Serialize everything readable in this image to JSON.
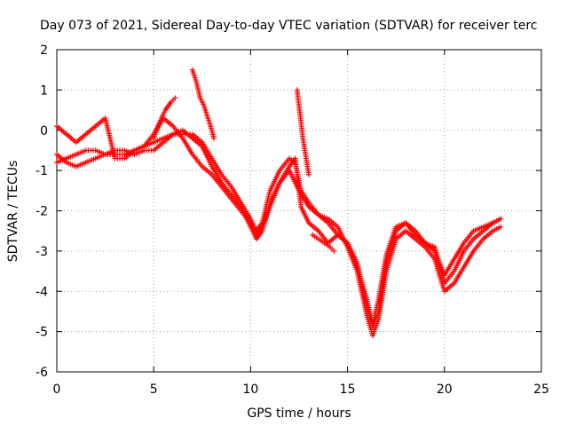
{
  "colors": {
    "series": "#ff0000",
    "grid": "#a0a0a0",
    "axis": "#000000"
  },
  "chart_data": {
    "type": "scatter",
    "marker": "plus",
    "title": "Day 073 of 2021, Sidereal Day-to-day VTEC variation (SDTVAR) for receiver terc",
    "xlabel": "GPS time / hours",
    "ylabel": "SDTVAR / TECUs",
    "xlim": [
      0,
      25
    ],
    "ylim": [
      -6,
      2
    ],
    "x_ticks": [
      "0",
      "5",
      "10",
      "15",
      "20",
      "25"
    ],
    "y_ticks": [
      "2",
      "1",
      "0",
      "-1",
      "-2",
      "-3",
      "-4",
      "-5",
      "-6"
    ],
    "grid": true,
    "legend": "none",
    "series": [
      {
        "x": [
          0.0,
          0.5,
          1.0,
          1.5,
          2.0,
          2.5,
          3.0,
          3.5,
          4.0,
          4.5,
          5.0,
          5.5,
          6.0,
          6.5,
          7.0,
          7.5,
          8.0,
          8.5,
          9.0,
          9.5,
          10.0,
          10.3,
          10.6,
          11.0,
          11.5,
          12.0,
          12.5,
          13.0,
          13.5,
          14.0,
          14.5,
          15.0,
          15.5,
          16.0,
          16.3,
          16.6,
          17.0,
          17.5,
          18.0,
          18.5,
          19.0,
          19.5,
          20.0,
          20.5,
          21.0,
          21.5,
          22.0,
          22.5,
          22.9
        ],
        "y": [
          -0.8,
          -0.7,
          -0.6,
          -0.5,
          -0.5,
          -0.6,
          -0.6,
          -0.6,
          -0.5,
          -0.4,
          -0.3,
          -0.2,
          -0.1,
          0.0,
          -0.2,
          -0.4,
          -0.9,
          -1.3,
          -1.6,
          -1.9,
          -2.4,
          -2.7,
          -2.5,
          -1.8,
          -1.3,
          -1.0,
          -1.5,
          -1.9,
          -2.1,
          -2.2,
          -2.4,
          -2.9,
          -3.5,
          -4.6,
          -5.1,
          -4.7,
          -3.5,
          -2.7,
          -2.5,
          -2.7,
          -2.9,
          -3.2,
          -4.0,
          -3.8,
          -3.4,
          -3.0,
          -2.7,
          -2.5,
          -2.4
        ]
      },
      {
        "x": [
          0.0,
          0.5,
          1.0,
          1.5,
          2.0,
          2.5,
          3.0,
          3.5,
          4.0,
          4.5,
          5.0,
          5.5,
          6.0,
          6.5,
          7.0,
          7.5,
          8.0,
          8.5,
          9.0,
          9.5,
          10.0,
          10.3,
          10.6,
          11.0,
          11.5,
          12.0,
          12.3,
          12.6,
          13.0,
          13.5,
          14.0,
          14.5,
          15.0,
          15.5,
          16.0,
          16.3,
          16.6,
          17.0,
          17.5,
          18.0,
          18.5,
          19.0,
          19.5,
          20.0,
          20.5,
          21.0,
          21.5,
          22.0,
          22.5,
          22.9
        ],
        "y": [
          -0.6,
          -0.8,
          -0.9,
          -0.8,
          -0.7,
          -0.6,
          -0.5,
          -0.5,
          -0.6,
          -0.5,
          -0.5,
          -0.3,
          -0.1,
          -0.1,
          -0.1,
          -0.3,
          -0.7,
          -1.1,
          -1.4,
          -1.8,
          -2.2,
          -2.5,
          -2.3,
          -1.5,
          -1.0,
          -0.7,
          -0.8,
          -1.5,
          -1.8,
          -2.1,
          -2.3,
          -2.6,
          -2.8,
          -3.3,
          -4.4,
          -4.9,
          -4.5,
          -3.3,
          -2.5,
          -2.3,
          -2.5,
          -2.8,
          -3.0,
          -3.6,
          -3.2,
          -2.8,
          -2.5,
          -2.4,
          -2.3,
          -2.2
        ]
      },
      {
        "x": [
          0.0,
          0.5,
          1.0,
          1.5,
          2.0,
          2.5,
          3.0,
          3.5,
          4.0,
          4.5,
          5.0,
          5.5,
          6.0,
          6.5,
          7.0,
          7.5,
          8.0,
          8.5,
          9.0,
          9.5,
          10.0,
          10.3,
          10.6,
          11.0,
          11.5,
          12.0,
          12.3,
          12.6,
          13.0,
          13.5,
          14.0,
          14.5,
          15.0,
          15.5,
          16.0,
          16.3,
          16.6,
          17.0,
          17.5,
          18.0,
          18.5,
          19.0,
          19.5,
          20.0,
          20.5,
          21.0,
          21.5,
          22.0,
          22.5,
          22.9
        ],
        "y": [
          0.1,
          -0.1,
          -0.3,
          -0.1,
          0.1,
          0.3,
          -0.7,
          -0.7,
          -0.5,
          -0.4,
          -0.1,
          0.3,
          0.1,
          -0.2,
          -0.6,
          -0.9,
          -1.1,
          -1.4,
          -1.7,
          -2.0,
          -2.3,
          -2.6,
          -2.4,
          -1.9,
          -1.3,
          -0.9,
          -0.7,
          -1.9,
          -2.3,
          -2.5,
          -2.8,
          -2.6,
          -2.8,
          -3.4,
          -4.2,
          -4.8,
          -4.2,
          -3.1,
          -2.4,
          -2.3,
          -2.6,
          -2.8,
          -2.9,
          -3.8,
          -3.5,
          -3.0,
          -2.7,
          -2.5,
          -2.3,
          -2.2
        ]
      },
      {
        "x": [
          5.0,
          5.3,
          5.6,
          5.9,
          6.1
        ],
        "y": [
          -0.2,
          0.2,
          0.5,
          0.7,
          0.8
        ]
      },
      {
        "x": [
          7.0,
          7.2,
          7.4,
          7.6,
          7.8,
          8.0,
          8.1
        ],
        "y": [
          1.5,
          1.2,
          0.8,
          0.6,
          0.3,
          0.0,
          -0.2
        ]
      },
      {
        "x": [
          12.4,
          12.5,
          12.6,
          12.7,
          12.8,
          12.9,
          13.0
        ],
        "y": [
          1.0,
          0.6,
          0.2,
          -0.2,
          -0.5,
          -0.8,
          -1.1
        ]
      },
      {
        "x": [
          13.2,
          13.5,
          13.8,
          14.1,
          14.3
        ],
        "y": [
          -2.6,
          -2.7,
          -2.8,
          -2.9,
          -3.0
        ]
      }
    ]
  }
}
